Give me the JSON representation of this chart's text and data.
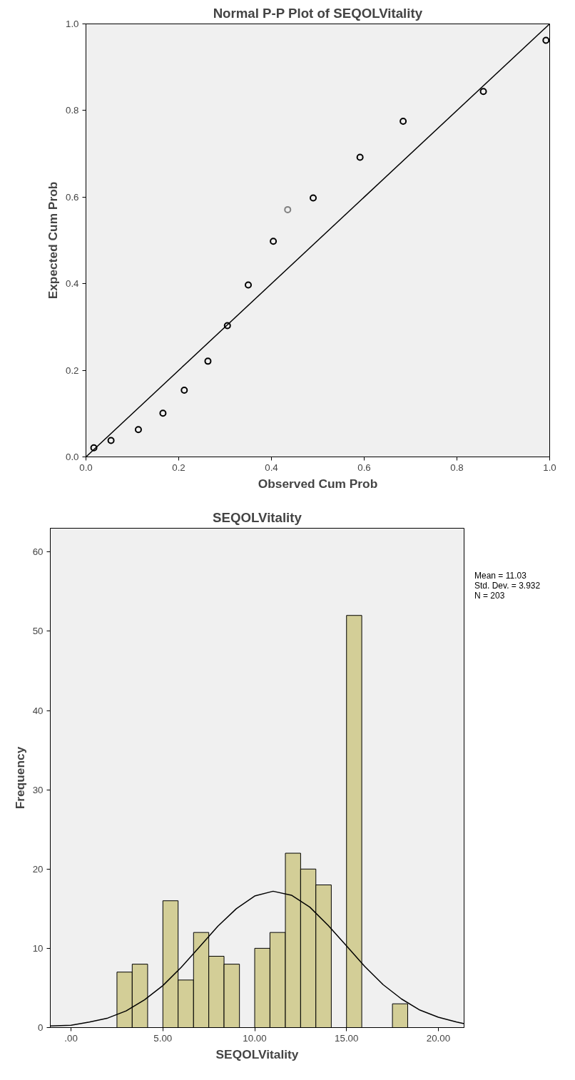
{
  "chart_data": [
    {
      "type": "scatter",
      "title": "Normal P-P Plot of SEQOLVitality",
      "xlabel": "Observed Cum Prob",
      "ylabel": "Expected Cum Prob",
      "marker": "circle",
      "grid": false,
      "xlim": [
        0,
        1
      ],
      "ylim": [
        0,
        1
      ],
      "xticks": [
        {
          "value": 0,
          "label": "0.0"
        },
        {
          "value": 0.2,
          "label": "0.2"
        },
        {
          "value": 0.4,
          "label": "0.4"
        },
        {
          "value": 0.6,
          "label": "0.6"
        },
        {
          "value": 0.8,
          "label": "0.8"
        },
        {
          "value": 1,
          "label": "1.0"
        }
      ],
      "yticks": [
        {
          "value": 0,
          "label": "0.0"
        },
        {
          "value": 0.2,
          "label": "0.2"
        },
        {
          "value": 0.4,
          "label": "0.4"
        },
        {
          "value": 0.6,
          "label": "0.6"
        },
        {
          "value": 0.8,
          "label": "0.8"
        },
        {
          "value": 1,
          "label": "1.0"
        }
      ],
      "series": [
        {
          "colors": [
            "#000000",
            "#000000",
            "#000000",
            "#000000",
            "#000000",
            "#000000",
            "#000000",
            "#000000",
            "#000000",
            "#808080",
            "#000000",
            "#000000",
            "#000000",
            "#000000",
            "#000000"
          ],
          "x": [
            0.017,
            0.054,
            0.113,
            0.166,
            0.212,
            0.263,
            0.305,
            0.35,
            0.404,
            0.435,
            0.49,
            0.591,
            0.684,
            0.857,
            0.992
          ],
          "values": [
            0.021,
            0.038,
            0.063,
            0.101,
            0.154,
            0.221,
            0.303,
            0.397,
            0.498,
            0.571,
            0.598,
            0.692,
            0.775,
            0.844,
            0.962
          ]
        },
        {
          "type": "line",
          "color": "#000000",
          "marker": "none",
          "x": [
            0,
            1
          ],
          "values": [
            0,
            1
          ]
        }
      ]
    },
    {
      "type": "histogram",
      "title": "SEQOLVitality",
      "xlabel": "SEQOLVitality",
      "ylabel": "Frequency",
      "grid": false,
      "xlim": [
        -1.13,
        21.4
      ],
      "ylim": [
        0,
        63
      ],
      "xticks": [
        {
          "value": 0,
          "label": ".00"
        },
        {
          "value": 5,
          "label": "5.00"
        },
        {
          "value": 10,
          "label": "10.00"
        },
        {
          "value": 15,
          "label": "15.00"
        },
        {
          "value": 20,
          "label": "20.00"
        }
      ],
      "yticks": [
        0,
        10,
        20,
        30,
        40,
        50,
        60
      ],
      "annotations": [
        "Mean = 11.03",
        "Std. Dev. = 3.932",
        "N = 203"
      ],
      "series": [
        {
          "color": "#d3ce97",
          "bins": [
            2.5,
            3.33,
            4.17,
            5,
            5.83,
            6.67,
            7.5,
            8.33,
            9.17,
            10,
            10.83,
            11.67,
            12.5,
            13.33,
            14.17,
            15,
            15.83,
            16.67,
            17.5,
            18.33
          ],
          "values": [
            7,
            8,
            0,
            16,
            6,
            12,
            9,
            8,
            0,
            10,
            12,
            22,
            20,
            18,
            0,
            52,
            0,
            0,
            3
          ]
        },
        {
          "type": "line",
          "color": "#000000",
          "marker": "none",
          "x": [
            -1.13,
            0,
            1,
            2,
            3,
            4,
            5,
            6,
            7,
            8,
            9,
            10,
            11,
            12,
            13,
            14,
            15,
            16,
            17,
            18,
            19,
            20,
            21,
            21.4
          ],
          "values": [
            0.2,
            0.3,
            0.7,
            1.2,
            2.1,
            3.5,
            5.3,
            7.6,
            10.2,
            12.8,
            15,
            16.6,
            17.2,
            16.7,
            15.2,
            12.9,
            10.3,
            7.7,
            5.4,
            3.6,
            2.2,
            1.3,
            0.7,
            0.5
          ]
        }
      ]
    }
  ]
}
